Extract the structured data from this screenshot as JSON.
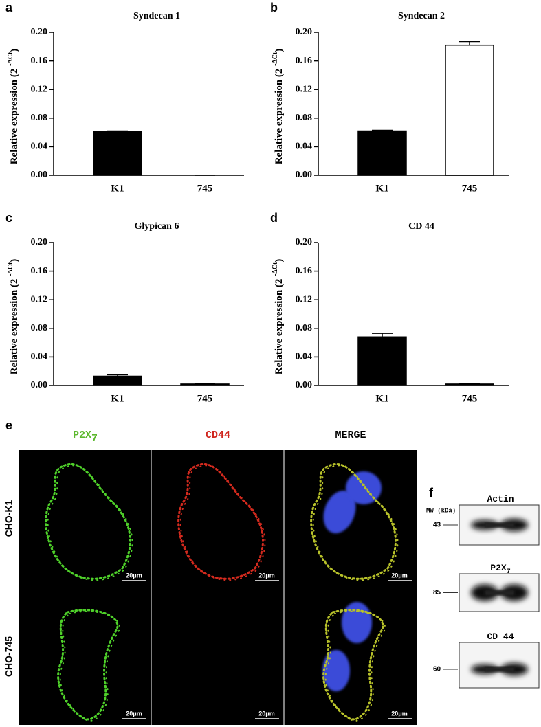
{
  "chart_data": [
    {
      "type": "bar",
      "panel_label": "a",
      "title": "Syndecan 1",
      "ylabel": "Relative expression (2 ",
      "ylabel_sup": "-ΔCt",
      "ylabel_end": ")",
      "categories": [
        "K1",
        "745"
      ],
      "values": [
        0.061,
        0
      ],
      "errors": [
        0.001,
        0
      ],
      "colors": [
        "#000000",
        "#ffffff"
      ],
      "ylim": [
        0,
        0.2
      ],
      "yticks": [
        {
          "value": 0,
          "label": "0.00"
        },
        {
          "value": 0.04,
          "label": "0.04"
        },
        {
          "value": 0.08,
          "label": "0.08"
        },
        {
          "value": 0.12,
          "label": "0.12"
        },
        {
          "value": 0.16,
          "label": "0.16"
        },
        {
          "value": 0.2,
          "label": "0.20"
        }
      ]
    },
    {
      "type": "bar",
      "panel_label": "b",
      "title": "Syndecan 2",
      "ylabel": "Relative expression (2 ",
      "ylabel_sup": "-ΔCt",
      "ylabel_end": ")",
      "categories": [
        "K1",
        "745"
      ],
      "values": [
        0.062,
        0.182
      ],
      "errors": [
        0.001,
        0.005
      ],
      "colors": [
        "#000000",
        "#ffffff"
      ],
      "ylim": [
        0,
        0.2
      ],
      "yticks": [
        {
          "value": 0,
          "label": "0.00"
        },
        {
          "value": 0.04,
          "label": "0.04"
        },
        {
          "value": 0.08,
          "label": "0.08"
        },
        {
          "value": 0.12,
          "label": "0.12"
        },
        {
          "value": 0.16,
          "label": "0.16"
        },
        {
          "value": 0.2,
          "label": "0.20"
        }
      ]
    },
    {
      "type": "bar",
      "panel_label": "c",
      "title": "Glypican 6",
      "ylabel": "Relative expression (2 ",
      "ylabel_sup": "-ΔCt",
      "ylabel_end": ")",
      "categories": [
        "K1",
        "745"
      ],
      "values": [
        0.013,
        0.002
      ],
      "errors": [
        0.002,
        0.001
      ],
      "colors": [
        "#000000",
        "#000000"
      ],
      "ylim": [
        0,
        0.2
      ],
      "yticks": [
        {
          "value": 0,
          "label": "0.00"
        },
        {
          "value": 0.04,
          "label": "0.04"
        },
        {
          "value": 0.08,
          "label": "0.08"
        },
        {
          "value": 0.12,
          "label": "0.12"
        },
        {
          "value": 0.16,
          "label": "0.16"
        },
        {
          "value": 0.2,
          "label": "0.20"
        }
      ]
    },
    {
      "type": "bar",
      "panel_label": "d",
      "title": "CD 44",
      "ylabel": "Relative expression (2 ",
      "ylabel_sup": "-ΔCt",
      "ylabel_end": ")",
      "categories": [
        "K1",
        "745"
      ],
      "values": [
        0.068,
        0.002
      ],
      "errors": [
        0.005,
        0.001
      ],
      "colors": [
        "#000000",
        "#000000"
      ],
      "ylim": [
        0,
        0.2
      ],
      "yticks": [
        {
          "value": 0,
          "label": "0.00"
        },
        {
          "value": 0.04,
          "label": "0.04"
        },
        {
          "value": 0.08,
          "label": "0.08"
        },
        {
          "value": 0.12,
          "label": "0.12"
        },
        {
          "value": 0.16,
          "label": "0.16"
        },
        {
          "value": 0.2,
          "label": "0.20"
        }
      ]
    }
  ],
  "panel_e": {
    "label": "e",
    "columns": [
      {
        "text": "P2X",
        "sub": "7",
        "color": "#5cb82e"
      },
      {
        "text": "CD44",
        "color": "#d0271f"
      },
      {
        "text": "MERGE",
        "color": "#000000"
      }
    ],
    "rows": [
      "CHO-K1",
      "CHO-745"
    ],
    "scale_bar": "20μm"
  },
  "panel_f": {
    "label": "f",
    "mw_label": "MW (kDa)",
    "blots": [
      {
        "name": "Actin",
        "mw": 43
      },
      {
        "name": "P2X",
        "sub": "7",
        "mw": 85
      },
      {
        "name": "CD 44",
        "mw": 60
      }
    ]
  }
}
